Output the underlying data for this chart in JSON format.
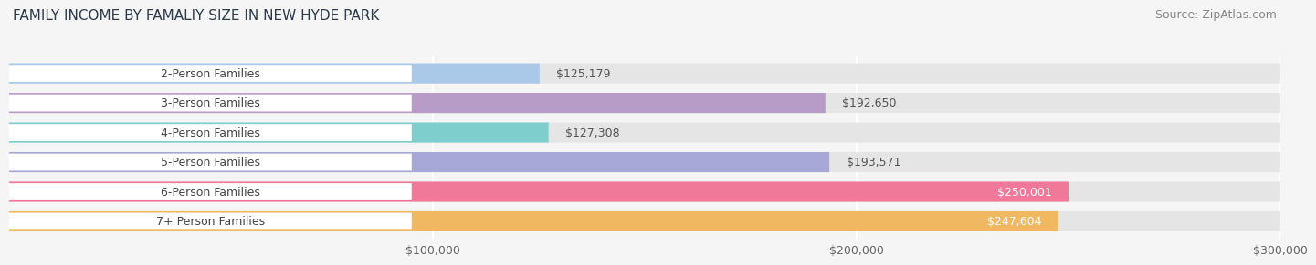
{
  "title": "FAMILY INCOME BY FAMALIY SIZE IN NEW HYDE PARK",
  "source": "Source: ZipAtlas.com",
  "categories": [
    "2-Person Families",
    "3-Person Families",
    "4-Person Families",
    "5-Person Families",
    "6-Person Families",
    "7+ Person Families"
  ],
  "values": [
    125179,
    192650,
    127308,
    193571,
    250001,
    247604
  ],
  "bar_colors": [
    "#aac8e8",
    "#b89cc8",
    "#7ecece",
    "#a8a8d8",
    "#f07898",
    "#f0b860"
  ],
  "value_labels": [
    "$125,179",
    "$192,650",
    "$127,308",
    "$193,571",
    "$250,001",
    "$247,604"
  ],
  "label_inside": [
    false,
    false,
    false,
    false,
    true,
    true
  ],
  "xlim": [
    0,
    300000
  ],
  "xticks": [
    100000,
    200000,
    300000
  ],
  "xticklabels": [
    "$100,000",
    "$200,000",
    "$300,000"
  ],
  "bg_color": "#f5f5f5",
  "bar_bg_color": "#e5e5e5",
  "title_fontsize": 11,
  "source_fontsize": 9,
  "label_fontsize": 9,
  "tick_fontsize": 9,
  "bar_height": 0.68,
  "bar_label_color_inside": "#ffffff",
  "bar_label_color_outside": "#555555",
  "title_color": "#2d3a4a",
  "category_label_color": "#444444"
}
